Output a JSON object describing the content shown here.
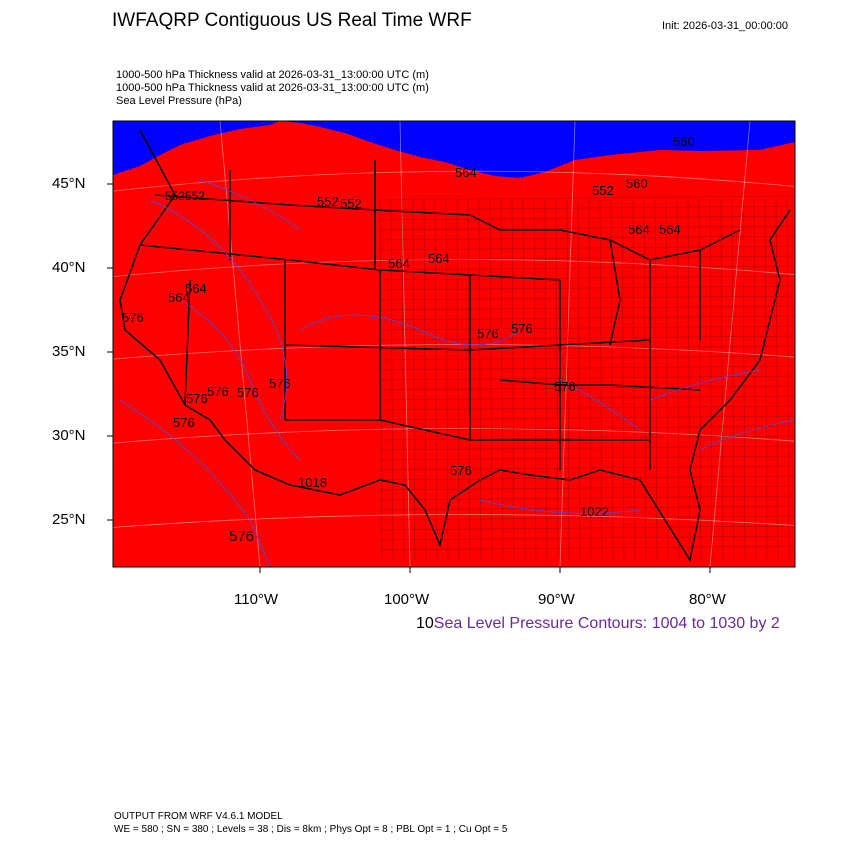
{
  "header": {
    "title": "IWFAQRP Contiguous US Real Time WRF",
    "init": "Init: 2026-03-31_00:00:00"
  },
  "subtitles": [
    "1000-500 hPa Thickness valid at 2026-03-31_13:00:00 UTC   (m)",
    "1000-500 hPa Thickness valid at 2026-03-31_13:00:00 UTC   (m)",
    "Sea Level Pressure   (hPa)"
  ],
  "axes": {
    "lat_labels": [
      "45°N",
      "40°N",
      "35°N",
      "30°N",
      "25°N"
    ],
    "lon_labels": [
      "110°W",
      "100°W",
      "90°W",
      "80°W"
    ]
  },
  "contour_note": {
    "prefix": "10",
    "text": "Sea Level Pressure Contours: 1004 to 1030 by 2"
  },
  "colors": {
    "fill_main": "#ff0000",
    "fill_cold": "#0000ff",
    "contour": "#6a3fb5",
    "borders": "#000000"
  },
  "contour_labels": {
    "thickness": [
      "552",
      "552",
      "552",
      "552",
      "552",
      "560",
      "560",
      "564",
      "564",
      "564",
      "564",
      "564",
      "564",
      "564",
      "576",
      "576",
      "576",
      "576",
      "576",
      "576",
      "576",
      "576",
      "576",
      "576",
      "576"
    ],
    "pressure": [
      "1018",
      "1022"
    ]
  },
  "footer": {
    "line1": "OUTPUT FROM WRF V4.6.1 MODEL",
    "line2": "WE = 580 ; SN = 380 ; Levels = 38 ; Dis = 8km ; Phys Opt = 8 ; PBL Opt = 1 ; Cu Opt = 5"
  }
}
